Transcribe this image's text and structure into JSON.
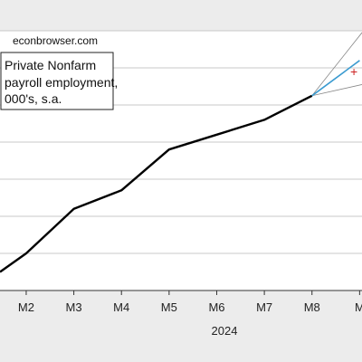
{
  "source": "econbrowser.com",
  "chart_data": {
    "type": "line",
    "legend": {
      "placement": "top-left",
      "lines": [
        "Private Nonfarm",
        "payroll employment,",
        "000's, s.a."
      ]
    },
    "x_tick_labels": [
      "M2",
      "M3",
      "M4",
      "M5",
      "M6",
      "M7",
      "M8",
      "M"
    ],
    "x_tick_positions": [
      2,
      3,
      4,
      5,
      6,
      7,
      8,
      9
    ],
    "year_label": "2024",
    "xlim": [
      1.45,
      9.05
    ],
    "ylim": [
      0,
      7
    ],
    "grid": "horizontal",
    "series": [
      {
        "color": "#000000",
        "x": [
          1.45,
          2,
          3,
          4,
          5,
          6,
          7,
          8
        ],
        "y": [
          0.5,
          1.0,
          2.2,
          2.7,
          3.8,
          4.2,
          4.6,
          5.25
        ]
      },
      {
        "color": "#3b9bd0",
        "x": [
          8,
          9
        ],
        "y": [
          5.25,
          6.2
        ]
      }
    ],
    "band": {
      "color": "#888888",
      "x": [
        8,
        9.05
      ],
      "upper": [
        5.25,
        6.95
      ],
      "lower": [
        5.25,
        5.55
      ]
    },
    "marker": {
      "symbol": "+",
      "color": "#cc2222",
      "x": 8.88,
      "y": 5.9
    }
  }
}
